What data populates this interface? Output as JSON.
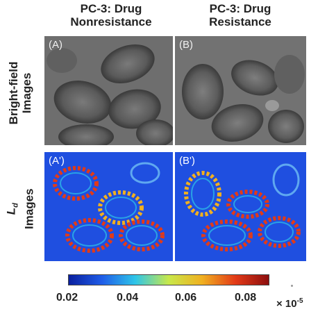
{
  "columns": [
    {
      "line1": "PC-3: Drug",
      "line2": "Nonresistance"
    },
    {
      "line1": "PC-3: Drug",
      "line2": "Resistance"
    }
  ],
  "rows": [
    {
      "line1": "Bright-field",
      "line2": "Images"
    },
    {
      "symbol": "L",
      "subscript": "d",
      "line2": "Images"
    }
  ],
  "panels": {
    "a": "(A)",
    "b": "(B)",
    "a_prime": "(A')",
    "b_prime": "(B')"
  },
  "colorbar": {
    "ticks": [
      "0.02",
      "0.04",
      "0.06",
      "0.08"
    ],
    "multiplier_base": "× 10",
    "multiplier_exp": "-5",
    "colors": [
      "#0a1f9e",
      "#1f5de8",
      "#2ec5e8",
      "#c8e84a",
      "#f0b020",
      "#e33a17",
      "#8c0e0e"
    ]
  }
}
